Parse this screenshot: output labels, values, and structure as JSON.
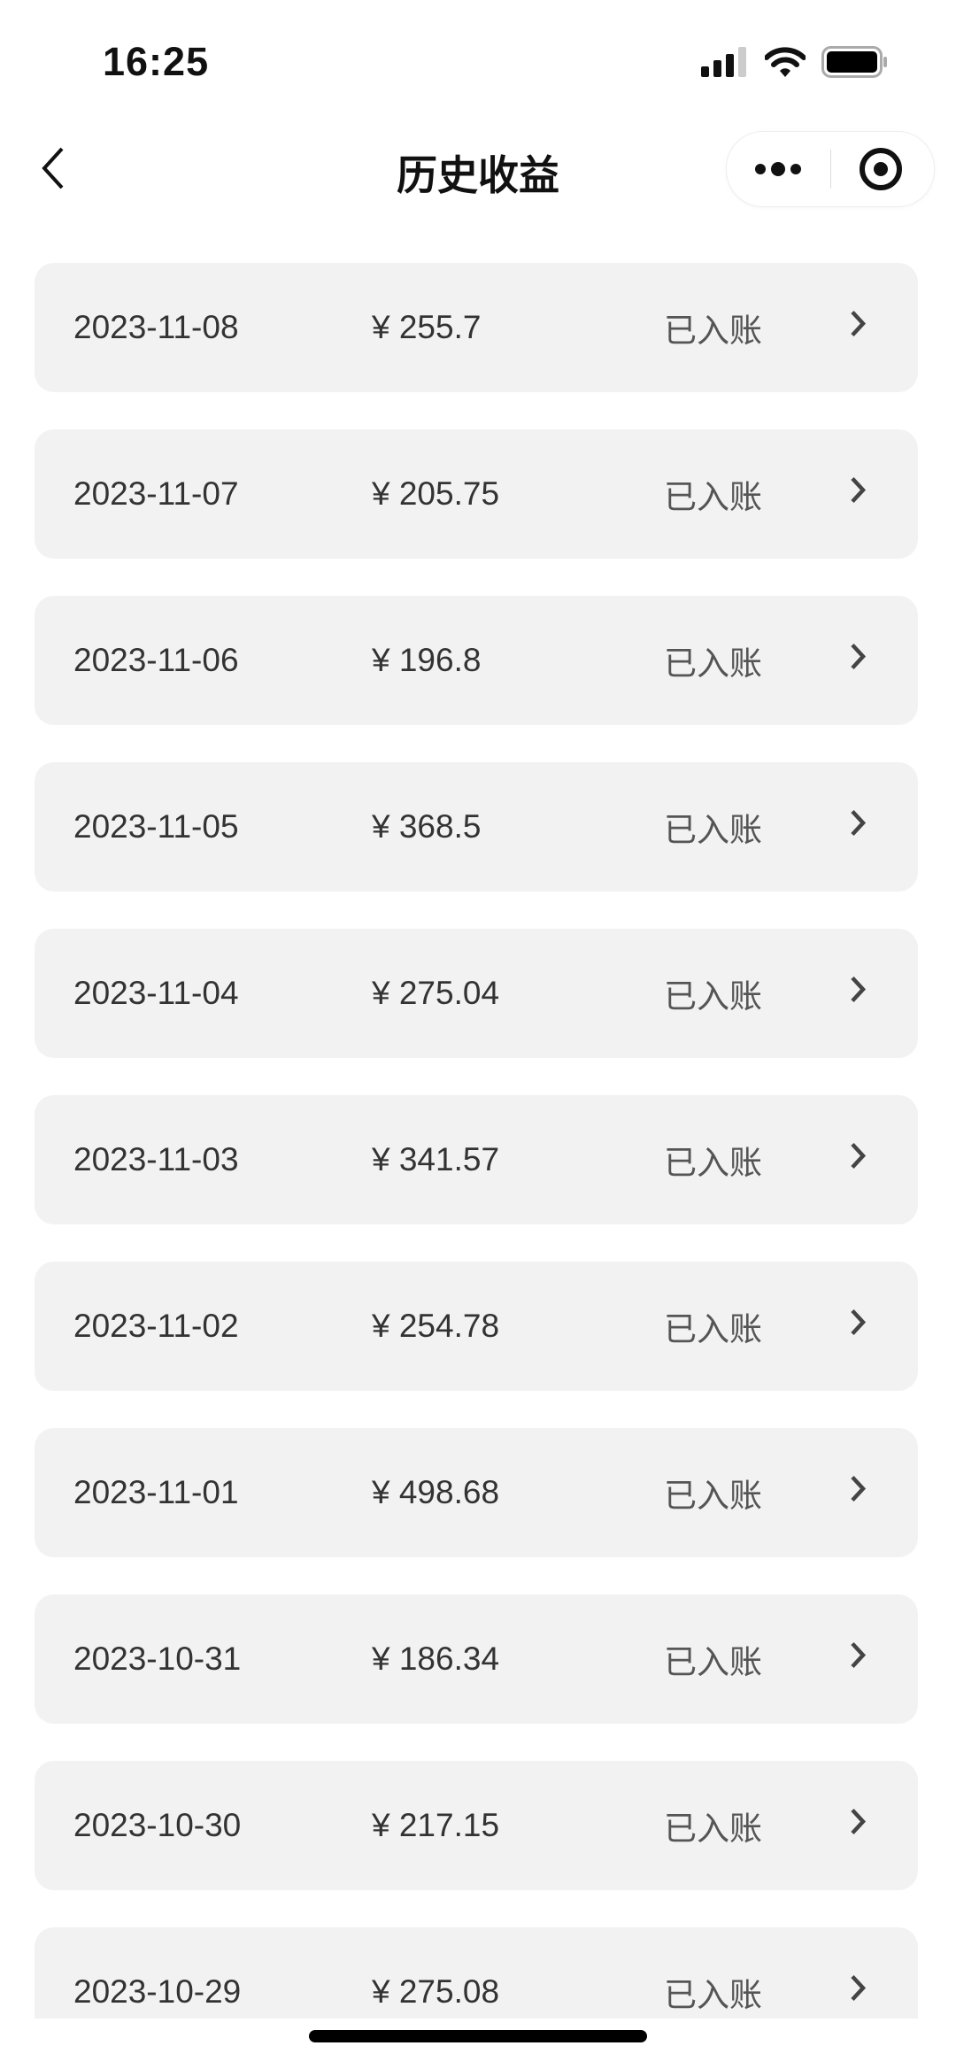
{
  "status_bar": {
    "time": "16:25",
    "icons": [
      "signal-icon",
      "wifi-icon",
      "battery-icon"
    ]
  },
  "nav": {
    "title": "历史收益",
    "back_icon": "chevron-left-icon",
    "more_icon": "more-dots-icon",
    "close_icon": "target-close-icon"
  },
  "records": [
    {
      "date": "2023-11-08",
      "amount": "¥ 255.7",
      "status": "已入账"
    },
    {
      "date": "2023-11-07",
      "amount": "¥ 205.75",
      "status": "已入账"
    },
    {
      "date": "2023-11-06",
      "amount": "¥ 196.8",
      "status": "已入账"
    },
    {
      "date": "2023-11-05",
      "amount": "¥ 368.5",
      "status": "已入账"
    },
    {
      "date": "2023-11-04",
      "amount": "¥ 275.04",
      "status": "已入账"
    },
    {
      "date": "2023-11-03",
      "amount": "¥ 341.57",
      "status": "已入账"
    },
    {
      "date": "2023-11-02",
      "amount": "¥ 254.78",
      "status": "已入账"
    },
    {
      "date": "2023-11-01",
      "amount": "¥ 498.68",
      "status": "已入账"
    },
    {
      "date": "2023-10-31",
      "amount": "¥ 186.34",
      "status": "已入账"
    },
    {
      "date": "2023-10-30",
      "amount": "¥ 217.15",
      "status": "已入账"
    },
    {
      "date": "2023-10-29",
      "amount": "¥ 275.08",
      "status": "已入账"
    }
  ],
  "colors": {
    "card_bg": "#f2f2f2",
    "text": "#333333",
    "status_text": "#555555"
  }
}
